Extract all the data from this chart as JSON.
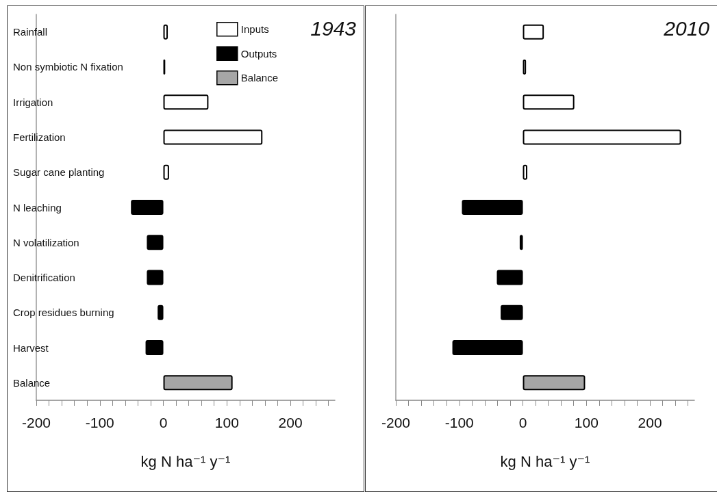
{
  "chart_data": [
    {
      "type": "bar",
      "orientation": "horizontal",
      "stacked": true,
      "title": "1943",
      "xlabel": "kg N ha⁻¹ y⁻¹",
      "categories": [
        "Rainfall",
        "Non symbiotic N fixation",
        "Irrigation",
        "Fertilization",
        "Sugar cane planting",
        "N leaching",
        "N volatilization",
        "Denitrification",
        "Crop residues burning",
        "Harvest",
        "Balance"
      ],
      "series": [
        {
          "name": "Inputs",
          "color": "#ffffff",
          "values": [
            7,
            3,
            71,
            156,
            9,
            null,
            null,
            null,
            null,
            null,
            null
          ]
        },
        {
          "name": "Outputs",
          "color": "#000000",
          "values": [
            null,
            null,
            null,
            null,
            null,
            -51,
            -26,
            -26,
            -9,
            -28,
            null
          ]
        },
        {
          "name": "Balance",
          "color": "#a6a6a6",
          "values": [
            null,
            null,
            null,
            null,
            null,
            null,
            null,
            null,
            null,
            null,
            109
          ]
        }
      ],
      "xlim": [
        -200,
        270
      ],
      "xticks": [
        -200,
        {
          "value": -180,
          "label": null
        },
        {
          "value": -160,
          "label": null
        },
        {
          "value": -140,
          "label": null
        },
        {
          "value": -120,
          "label": null
        },
        -100,
        {
          "value": -80,
          "label": null
        },
        {
          "value": -60,
          "label": null
        },
        {
          "value": -40,
          "label": null
        },
        {
          "value": -20,
          "label": null
        },
        0,
        {
          "value": 20,
          "label": null
        },
        {
          "value": 40,
          "label": null
        },
        {
          "value": 60,
          "label": null
        },
        {
          "value": 80,
          "label": null
        },
        100,
        {
          "value": 120,
          "label": null
        },
        {
          "value": 140,
          "label": null
        },
        {
          "value": 160,
          "label": null
        },
        {
          "value": 180,
          "label": null
        },
        200,
        {
          "value": 220,
          "label": null
        },
        {
          "value": 240,
          "label": null
        },
        {
          "value": 260,
          "label": null
        }
      ],
      "legend": "top right",
      "grid": false
    },
    {
      "type": "bar",
      "orientation": "horizontal",
      "stacked": true,
      "title": "2010",
      "xlabel": "kg N ha⁻¹ y⁻¹",
      "categories": [
        null,
        null,
        null,
        null,
        null,
        null,
        null,
        null,
        null,
        null,
        null
      ],
      "series": [
        {
          "color": "#ffffff",
          "values": [
            33,
            5,
            81,
            249,
            7,
            null,
            null,
            null,
            null,
            null,
            null
          ]
        },
        {
          "color": "#000000",
          "values": [
            null,
            null,
            null,
            null,
            null,
            -96,
            -5,
            -41,
            -35,
            -111,
            null
          ]
        },
        {
          "color": "#a6a6a6",
          "values": [
            null,
            null,
            null,
            null,
            null,
            null,
            null,
            null,
            null,
            null,
            98
          ]
        }
      ],
      "xlim": [
        -200,
        270
      ],
      "xticks": [
        -200,
        {
          "value": -180,
          "label": null
        },
        {
          "value": -160,
          "label": null
        },
        {
          "value": -140,
          "label": null
        },
        {
          "value": -120,
          "label": null
        },
        -100,
        {
          "value": -80,
          "label": null
        },
        {
          "value": -60,
          "label": null
        },
        {
          "value": -40,
          "label": null
        },
        {
          "value": -20,
          "label": null
        },
        0,
        {
          "value": 20,
          "label": null
        },
        {
          "value": 40,
          "label": null
        },
        {
          "value": 60,
          "label": null
        },
        {
          "value": 80,
          "label": null
        },
        100,
        {
          "value": 120,
          "label": null
        },
        {
          "value": 140,
          "label": null
        },
        {
          "value": 160,
          "label": null
        },
        {
          "value": 180,
          "label": null
        },
        200,
        {
          "value": 220,
          "label": null
        },
        {
          "value": 240,
          "label": null
        },
        {
          "value": 260,
          "label": null
        }
      ],
      "legend": false,
      "grid": false
    }
  ]
}
